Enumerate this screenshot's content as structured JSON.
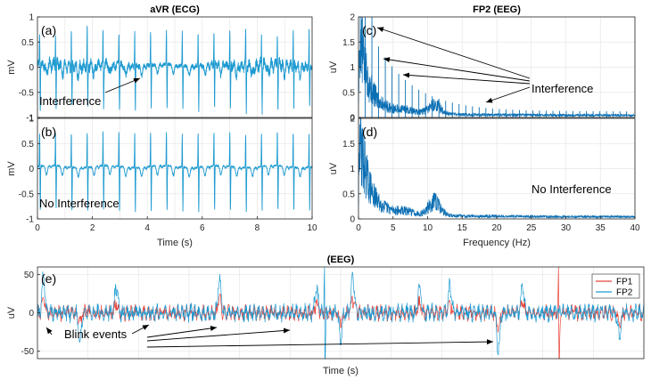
{
  "chart_data": [
    {
      "id": "a",
      "type": "line",
      "panel_label": "(a)",
      "title": "aVR (ECG)",
      "ylabel": "mV",
      "xlim": [
        0,
        10
      ],
      "ylim": [
        -1,
        1
      ],
      "yticks": [
        "1",
        "0.5",
        "0",
        "-0.5",
        "-1"
      ],
      "color": "#1f9bd1",
      "annotation": "Interference",
      "grid": true
    },
    {
      "id": "b",
      "type": "line",
      "panel_label": "(b)",
      "ylabel": "mV",
      "xlabel": "Time (s)",
      "xlim": [
        0,
        10
      ],
      "ylim": [
        -1,
        1
      ],
      "xticks": [
        "0",
        "2",
        "4",
        "6",
        "8",
        "10"
      ],
      "yticks": [
        "1",
        "0.5",
        "0",
        "-0.5",
        "-1"
      ],
      "color": "#1f9bd1",
      "annotation": "No Interference",
      "grid": true
    },
    {
      "id": "c",
      "type": "line",
      "panel_label": "(c)",
      "title": "FP2 (EEG)",
      "ylabel": "uV",
      "xlim": [
        0,
        40
      ],
      "ylim": [
        0,
        2
      ],
      "yticks": [
        "2",
        "1.5",
        "1",
        "0.5",
        "0"
      ],
      "color": "#0c6fb3",
      "annotation": "Interference",
      "grid": true
    },
    {
      "id": "d",
      "type": "line",
      "panel_label": "(d)",
      "ylabel": "uV",
      "xlabel": "Frequency (Hz)",
      "xlim": [
        0,
        40
      ],
      "ylim": [
        0,
        2
      ],
      "xticks": [
        "0",
        "5",
        "10",
        "15",
        "20",
        "25",
        "30",
        "35",
        "40"
      ],
      "yticks": [
        "2",
        "1.5",
        "1",
        "0.5",
        "0"
      ],
      "color": "#0c6fb3",
      "annotation": "No Interference",
      "grid": true
    },
    {
      "id": "e",
      "type": "line",
      "panel_label": "(e)",
      "title": "(EEG)",
      "ylabel": "uV",
      "xlabel": "Time (s)",
      "ylim": [
        -60,
        60
      ],
      "yticks": [
        "50",
        "0",
        "-50"
      ],
      "series": [
        {
          "name": "FP1",
          "color": "#e8433a"
        },
        {
          "name": "FP2",
          "color": "#1f9bd1"
        }
      ],
      "annotation": "Blink events",
      "legend": "top-right",
      "grid": true
    }
  ]
}
